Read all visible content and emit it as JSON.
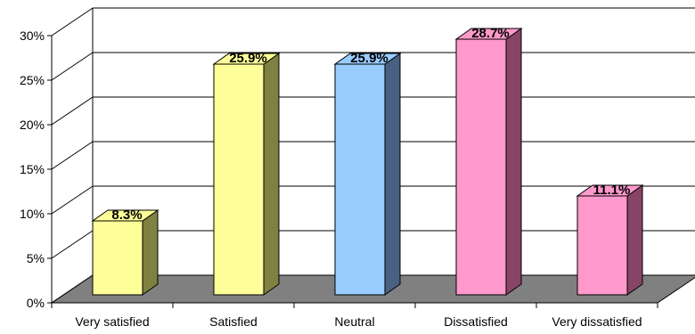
{
  "chart_data": {
    "type": "bar",
    "title": "",
    "xlabel": "",
    "ylabel": "",
    "categories": [
      "Very satisfied",
      "Satisfied",
      "Neutral",
      "Dissatisfied",
      "Very dissatisfied"
    ],
    "values": [
      8.3,
      25.9,
      25.9,
      28.7,
      11.1
    ],
    "data_labels": [
      "8.3%",
      "25.9%",
      "25.9%",
      "28.7%",
      "11.1%"
    ],
    "ylim": [
      0,
      30
    ],
    "y_ticks": [
      0,
      5,
      10,
      15,
      20,
      25,
      30
    ],
    "y_tick_labels": [
      "0%",
      "5%",
      "10%",
      "15%",
      "20%",
      "25%",
      "30%"
    ],
    "grid": true,
    "legend": "none",
    "three_d": true,
    "colors": {
      "bars": [
        "#FFFF99",
        "#FFFF99",
        "#99CCFF",
        "#FF99CC",
        "#FF99CC"
      ],
      "bar_sides": [
        "#808040",
        "#808040",
        "#4A6080",
        "#884466",
        "#884466"
      ],
      "floor": "#808080",
      "grid": "#000000"
    }
  }
}
